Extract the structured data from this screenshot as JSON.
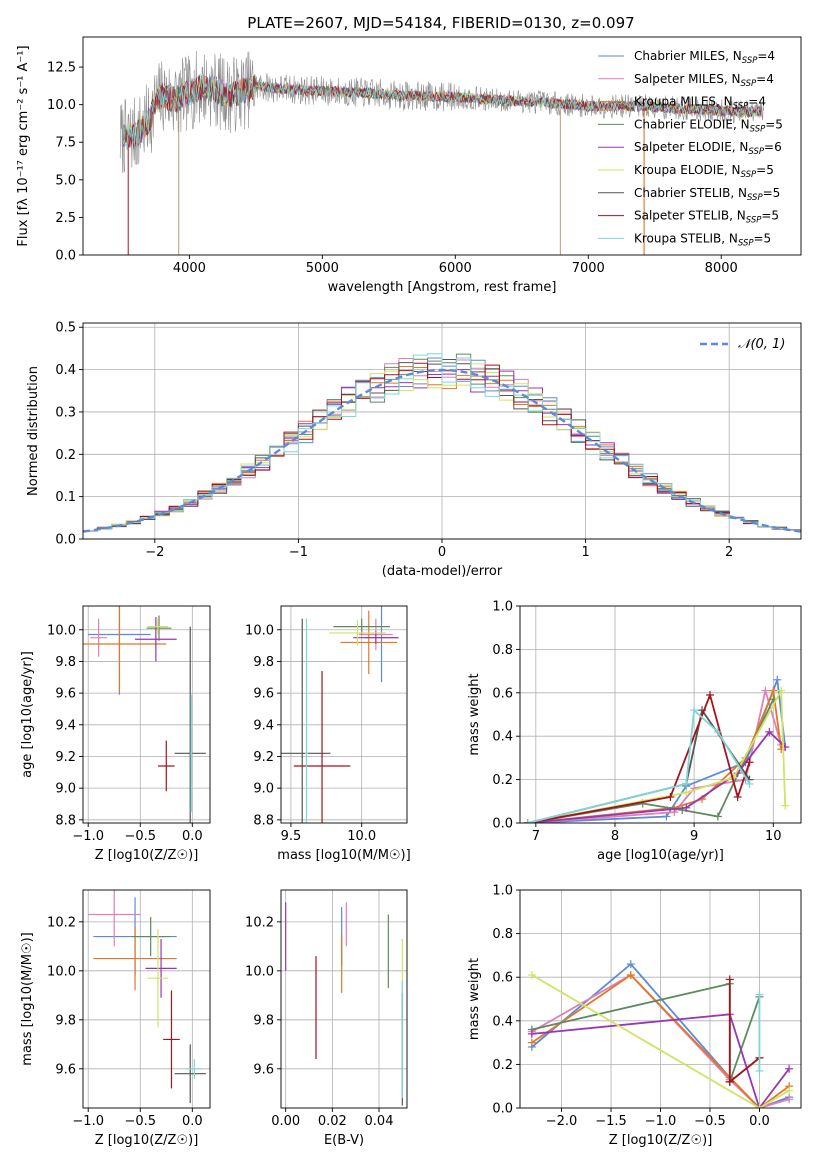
{
  "figure": {
    "title": "PLATE=2607, MJD=54184, FIBERID=0130, z=0.097"
  },
  "colors": {
    "chabrier_miles": "#5b8bd8",
    "salpeter_miles": "#e07fb8",
    "kroupa_miles": "#e07828",
    "chabrier_elodie": "#5e8a60",
    "salpeter_elodie": "#9a35b4",
    "kroupa_elodie": "#d2e264",
    "chabrier_stelib": "#555555",
    "salpeter_stelib": "#a3141e",
    "kroupa_stelib": "#7fd6d6",
    "spectrum": "#8c8c8c",
    "normal": "#5b8bd8"
  },
  "chart_data": [
    {
      "type": "line",
      "panel": "spectrum",
      "title": "PLATE=2607, MJD=54184, FIBERID=0130, z=0.097",
      "xlabel": "wavelength [Angstrom, rest frame]",
      "ylabel": "Flux [fλ 10⁻¹⁷ erg cm⁻² s⁻¹ A⁻¹]",
      "xlim": [
        3200,
        8600
      ],
      "ylim": [
        0,
        14.5
      ],
      "xticks": [
        4000,
        5000,
        6000,
        7000,
        8000
      ],
      "yticks": [
        0.0,
        2.5,
        5.0,
        7.5,
        10.0,
        12.5
      ],
      "grid": false,
      "legend_position": "top-right",
      "series": [
        {
          "name": "Chabrier MILES, N_SSP=4"
        },
        {
          "name": "Salpeter MILES, N_SSP=4"
        },
        {
          "name": "Kroupa MILES, N_SSP=4"
        },
        {
          "name": "Chabrier ELODIE, N_SSP=5"
        },
        {
          "name": "Salpeter ELODIE, N_SSP=6"
        },
        {
          "name": "Kroupa ELODIE, N_SSP=5"
        },
        {
          "name": "Chabrier STELIB, N_SSP=5"
        },
        {
          "name": "Salpeter STELIB, N_SSP=5"
        },
        {
          "name": "Kroupa STELIB, N_SSP=5"
        }
      ],
      "continuum": {
        "x": [
          3500,
          3600,
          3700,
          3750,
          3800,
          3900,
          4000,
          4100,
          4200,
          4300,
          4500,
          4800,
          5000,
          5300,
          5600,
          6000,
          6300,
          6600,
          7000,
          7400,
          7800,
          8200,
          8300
        ],
        "y": [
          7.8,
          8.0,
          9.0,
          10.2,
          10.6,
          10.3,
          10.8,
          11.2,
          11.0,
          10.6,
          11.2,
          11.0,
          10.9,
          10.8,
          10.6,
          10.5,
          10.3,
          10.2,
          9.9,
          9.9,
          9.7,
          9.5,
          9.5
        ]
      }
    },
    {
      "type": "step",
      "panel": "residuals",
      "xlabel": "(data-model)/error",
      "ylabel": "Normed distribution",
      "xlim": [
        -2.5,
        2.5
      ],
      "ylim": [
        0,
        0.51
      ],
      "xticks": [
        -2,
        -1,
        0,
        1,
        2
      ],
      "yticks": [
        0.0,
        0.1,
        0.2,
        0.3,
        0.4,
        0.5
      ],
      "grid": true,
      "legend_position": "top-right",
      "normal_label": "𝒩(0, 1)",
      "bin_width": 0.1
    },
    {
      "type": "scatter",
      "panel": "age-vs-Z",
      "xlabel": "Z [log10(Z/Z☉)]",
      "ylabel": "age  [log10(age/yr)]",
      "xlim": [
        -1.05,
        0.17
      ],
      "ylim": [
        8.78,
        10.15
      ],
      "xticks": [
        -1.0,
        -0.5,
        0.0
      ],
      "yticks": [
        8.8,
        9.0,
        9.2,
        9.4,
        9.6,
        9.8,
        10.0
      ],
      "grid": true,
      "points": [
        {
          "x": -0.7,
          "y": 9.97,
          "xerr": 0.3,
          "yerr": 0.38
        },
        {
          "x": -0.9,
          "y": 9.95,
          "xerr": 0.08,
          "yerr": 0.12
        },
        {
          "x": -0.7,
          "y": 9.91,
          "xerr": 0.45,
          "yerr": 0.3
        },
        {
          "x": -0.32,
          "y": 10.01,
          "xerr": 0.12,
          "yerr": 0.08
        },
        {
          "x": -0.35,
          "y": 9.94,
          "xerr": 0.2,
          "yerr": 0.14
        },
        {
          "x": -0.33,
          "y": 10.02,
          "xerr": 0.1,
          "yerr": 0.05
        },
        {
          "x": -0.02,
          "y": 9.22,
          "xerr": 0.15,
          "yerr": 0.8
        },
        {
          "x": -0.25,
          "y": 9.14,
          "xerr": 0.08,
          "yerr": 0.16
        },
        {
          "x": -0.01,
          "y": 9.22,
          "xerr": 0.01,
          "yerr": 0.37
        }
      ]
    },
    {
      "type": "scatter",
      "panel": "age-vs-mass",
      "xlabel": "mass [log10(M/M☉)]",
      "ylabel": "",
      "xlim": [
        9.43,
        10.32
      ],
      "ylim": [
        8.78,
        10.15
      ],
      "xticks": [
        9.5,
        10.0
      ],
      "yticks": [
        8.8,
        9.0,
        9.2,
        9.4,
        9.6,
        9.8,
        10.0
      ],
      "grid": true,
      "points": [
        {
          "x": 10.14,
          "y": 9.95,
          "xerr": 0.12,
          "yerr": 0.28
        },
        {
          "x": 10.1,
          "y": 9.97,
          "xerr": 0.12,
          "yerr": 0.1
        },
        {
          "x": 10.05,
          "y": 9.92,
          "xerr": 0.2,
          "yerr": 0.2
        },
        {
          "x": 10.0,
          "y": 10.02,
          "xerr": 0.2,
          "yerr": 0.05
        },
        {
          "x": 10.1,
          "y": 9.95,
          "xerr": 0.16,
          "yerr": 0.04
        },
        {
          "x": 9.97,
          "y": 9.98,
          "xerr": 0.2,
          "yerr": 0.08
        },
        {
          "x": 9.58,
          "y": 9.22,
          "xerr": 0.2,
          "yerr": 0.85
        },
        {
          "x": 9.72,
          "y": 9.14,
          "xerr": 0.2,
          "yerr": 0.6
        },
        {
          "x": 9.61,
          "y": 9.22,
          "xerr": 0.01,
          "yerr": 0.85
        }
      ]
    },
    {
      "type": "line",
      "panel": "mass-weight-vs-age",
      "xlabel": "age  [log10(age/yr)]",
      "ylabel": "mass weight",
      "xlim": [
        6.8,
        10.35
      ],
      "ylim": [
        0,
        1
      ],
      "xticks": [
        7,
        8,
        9,
        10
      ],
      "yticks": [
        0.0,
        0.2,
        0.4,
        0.6,
        0.8,
        1.0
      ],
      "grid": true,
      "series": [
        {
          "x": [
            6.9,
            8.65,
            8.9,
            9.65,
            10.05,
            10.15
          ],
          "y": [
            0.0,
            0.03,
            0.17,
            0.28,
            0.66,
            0.35
          ]
        },
        {
          "x": [
            6.9,
            8.75,
            9.0,
            9.65,
            9.9,
            10.1
          ],
          "y": [
            0.0,
            0.05,
            0.16,
            0.2,
            0.61,
            0.36
          ]
        },
        {
          "x": [
            6.9,
            8.75,
            9.1,
            9.65,
            10.0,
            10.1
          ],
          "y": [
            0.0,
            0.07,
            0.11,
            0.3,
            0.61,
            0.34
          ]
        },
        {
          "x": [
            6.9,
            8.35,
            8.85,
            9.3,
            10.0
          ],
          "y": [
            0.0,
            0.09,
            0.06,
            0.03,
            0.57
          ]
        },
        {
          "x": [
            6.9,
            8.9,
            9.55,
            9.95,
            10.15
          ],
          "y": [
            0.0,
            0.07,
            0.23,
            0.42,
            0.35
          ]
        },
        {
          "x": [
            6.9,
            8.9,
            9.5,
            10.1,
            10.15
          ],
          "y": [
            0.0,
            0.14,
            0.21,
            0.61,
            0.08
          ]
        },
        {
          "x": [
            6.9,
            8.9,
            9.1,
            9.7
          ],
          "y": [
            0.0,
            0.18,
            0.52,
            0.2
          ]
        },
        {
          "x": [
            6.9,
            8.7,
            9.2,
            9.55,
            9.7
          ],
          "y": [
            0.0,
            0.12,
            0.59,
            0.12,
            0.28
          ]
        },
        {
          "x": [
            6.9,
            8.9,
            9.0,
            9.3,
            9.7
          ],
          "y": [
            0.0,
            0.18,
            0.52,
            0.42,
            0.18
          ]
        }
      ]
    },
    {
      "type": "scatter",
      "panel": "mass-vs-Z",
      "xlabel": "Z [log10(Z/Z☉)]",
      "ylabel": "mass [log10(M/M☉)]",
      "xlim": [
        -1.05,
        0.17
      ],
      "ylim": [
        9.44,
        10.33
      ],
      "xticks": [
        -1.0,
        -0.5,
        0.0
      ],
      "yticks": [
        9.6,
        9.8,
        10.0,
        10.2
      ],
      "grid": true,
      "points": [
        {
          "x": -0.55,
          "y": 10.14,
          "xerr": 0.4,
          "yerr": 0.16
        },
        {
          "x": -0.75,
          "y": 10.23,
          "xerr": 0.25,
          "yerr": 0.13
        },
        {
          "x": -0.55,
          "y": 10.05,
          "xerr": 0.4,
          "yerr": 0.13
        },
        {
          "x": -0.4,
          "y": 10.14,
          "xerr": 0.18,
          "yerr": 0.08
        },
        {
          "x": -0.3,
          "y": 10.01,
          "xerr": 0.15,
          "yerr": 0.12
        },
        {
          "x": -0.33,
          "y": 9.97,
          "xerr": 0.1,
          "yerr": 0.2
        },
        {
          "x": -0.02,
          "y": 9.58,
          "xerr": 0.15,
          "yerr": 0.12
        },
        {
          "x": -0.2,
          "y": 9.72,
          "xerr": 0.08,
          "yerr": 0.2
        },
        {
          "x": 0.02,
          "y": 9.6,
          "xerr": 0.08,
          "yerr": 0.04
        }
      ]
    },
    {
      "type": "scatter",
      "panel": "mass-vs-EBV",
      "xlabel": "E(B-V)",
      "ylabel": "",
      "xlim": [
        -0.002,
        0.052
      ],
      "ylim": [
        9.44,
        10.33
      ],
      "xticks": [
        0.0,
        0.02,
        0.04
      ],
      "yticks": [
        9.6,
        9.8,
        10.0,
        10.2
      ],
      "grid": true,
      "points": [
        {
          "x": 0.024,
          "y": 10.14,
          "yerr": 0.12
        },
        {
          "x": 0.026,
          "y": 10.19,
          "yerr": 0.09
        },
        {
          "x": 0.024,
          "y": 10.03,
          "yerr": 0.12
        },
        {
          "x": 0.044,
          "y": 10.08,
          "yerr": 0.15
        },
        {
          "x": 0.0,
          "y": 10.14,
          "yerr": 0.14
        },
        {
          "x": 0.05,
          "y": 9.97,
          "yerr": 0.16
        },
        {
          "x": 0.05,
          "y": 9.68,
          "yerr": 0.23
        },
        {
          "x": 0.013,
          "y": 9.85,
          "yerr": 0.21
        },
        {
          "x": 0.05,
          "y": 9.72,
          "yerr": 0.24
        }
      ]
    },
    {
      "type": "line",
      "panel": "mass-weight-vs-Z",
      "xlabel": "Z [log10(Z/Z☉)]",
      "ylabel": "mass weight",
      "xlim": [
        -2.42,
        0.42
      ],
      "ylim": [
        0,
        1
      ],
      "xticks": [
        -2.0,
        -1.5,
        -1.0,
        -0.5,
        0.0
      ],
      "yticks": [
        0.0,
        0.2,
        0.4,
        0.6,
        0.8,
        1.0
      ],
      "grid": true,
      "series": [
        {
          "x": [
            -2.3,
            -1.3,
            -0.3,
            0.0,
            0.3
          ],
          "y": [
            0.28,
            0.66,
            0.14,
            0.0,
            0.05
          ]
        },
        {
          "x": [
            -2.3,
            -1.3,
            -0.3,
            0.0,
            0.3
          ],
          "y": [
            0.35,
            0.61,
            0.13,
            0.0,
            0.04
          ]
        },
        {
          "x": [
            -2.3,
            -1.3,
            -0.3,
            0.0,
            0.3
          ],
          "y": [
            0.3,
            0.61,
            0.14,
            0.0,
            0.1
          ]
        },
        {
          "x": [
            -2.3,
            -0.3,
            -0.3,
            0.0
          ],
          "y": [
            0.36,
            0.57,
            0.12,
            0.51
          ]
        },
        {
          "x": [
            -2.3,
            -0.3,
            0.0,
            0.3
          ],
          "y": [
            0.34,
            0.43,
            0.0,
            0.18
          ]
        },
        {
          "x": [
            -2.3,
            0.0,
            0.3
          ],
          "y": [
            0.61,
            0.0,
            0.08
          ]
        },
        {
          "x": [
            -0.3,
            0.0
          ],
          "y": [
            0.12,
            0.23
          ]
        },
        {
          "x": [
            -0.3,
            -0.3,
            0.0
          ],
          "y": [
            0.59,
            0.12,
            0.23
          ]
        },
        {
          "x": [
            0.0,
            0.0
          ],
          "y": [
            0.52,
            0.17
          ]
        }
      ]
    }
  ]
}
